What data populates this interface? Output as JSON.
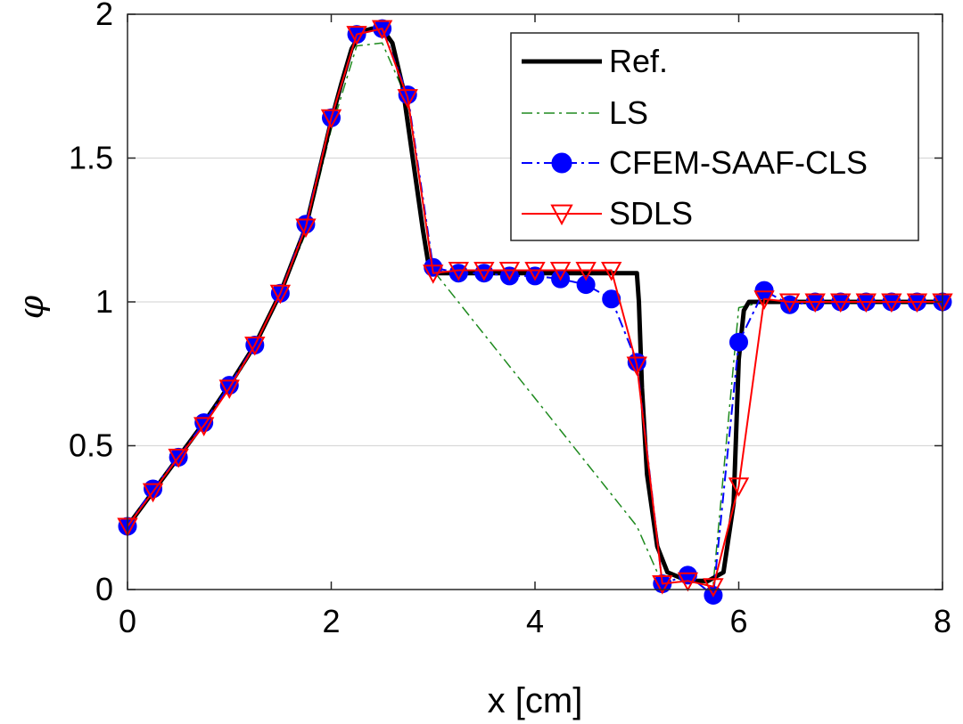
{
  "chart_data": {
    "type": "line",
    "title": "",
    "xlabel": "x [cm]",
    "ylabel": "φ",
    "xlim": [
      0,
      8
    ],
    "ylim": [
      0,
      2
    ],
    "xticks": [
      0,
      2,
      4,
      6,
      8
    ],
    "xtick_labels": [
      "0",
      "2",
      "4",
      "6",
      "8"
    ],
    "yticks": [
      0,
      0.5,
      1,
      1.5,
      2
    ],
    "ytick_labels": [
      "0",
      "0.5",
      "1",
      "1.5",
      "2"
    ],
    "grid": "horizontal",
    "legend_position": "top-right",
    "series": [
      {
        "name": "Ref.",
        "color": "#000000",
        "style": "solid",
        "marker": "none",
        "x": [
          0,
          0.25,
          0.5,
          0.75,
          1.0,
          1.25,
          1.5,
          1.75,
          2.0,
          2.1,
          2.2,
          2.3,
          2.4,
          2.5,
          2.6,
          2.7,
          2.8,
          2.9,
          2.95,
          3.0,
          4.0,
          5.0,
          5.02,
          5.05,
          5.1,
          5.2,
          5.3,
          5.5,
          5.7,
          5.85,
          5.95,
          6.0,
          6.05,
          6.1,
          7.0,
          8.0
        ],
        "y": [
          0.22,
          0.34,
          0.46,
          0.58,
          0.71,
          0.85,
          1.03,
          1.26,
          1.63,
          1.76,
          1.88,
          1.94,
          1.95,
          1.95,
          1.9,
          1.75,
          1.5,
          1.25,
          1.14,
          1.1,
          1.1,
          1.1,
          1.0,
          0.7,
          0.4,
          0.15,
          0.06,
          0.03,
          0.03,
          0.06,
          0.3,
          0.8,
          0.97,
          1.0,
          1.0,
          1.0
        ]
      },
      {
        "name": "LS",
        "color": "#1e8a1e",
        "style": "dashdot",
        "marker": "none",
        "x": [
          0,
          0.25,
          0.5,
          0.75,
          1.0,
          1.25,
          1.5,
          1.75,
          2.0,
          2.25,
          2.5,
          2.75,
          3.0,
          5.0,
          5.25,
          5.5,
          5.75,
          6.0,
          6.25,
          6.5,
          7.0,
          7.5,
          8.0
        ],
        "y": [
          0.22,
          0.34,
          0.46,
          0.57,
          0.7,
          0.84,
          1.02,
          1.24,
          1.6,
          1.89,
          1.9,
          1.7,
          1.11,
          0.22,
          0.02,
          0.03,
          0.02,
          0.98,
          1.0,
          1.0,
          1.0,
          1.0,
          1.0
        ]
      },
      {
        "name": "CFEM-SAAF-CLS",
        "color": "#0000ff",
        "style": "dashdot",
        "marker": "circle",
        "x": [
          0,
          0.25,
          0.5,
          0.75,
          1.0,
          1.25,
          1.5,
          1.75,
          2.0,
          2.25,
          2.5,
          2.75,
          3.0,
          3.25,
          3.5,
          3.75,
          4.0,
          4.25,
          4.5,
          4.75,
          5.0,
          5.25,
          5.5,
          5.75,
          6.0,
          6.25,
          6.5,
          6.75,
          7.0,
          7.25,
          7.5,
          7.75,
          8.0
        ],
        "y": [
          0.22,
          0.35,
          0.46,
          0.58,
          0.71,
          0.85,
          1.03,
          1.27,
          1.64,
          1.93,
          1.95,
          1.72,
          1.12,
          1.1,
          1.1,
          1.09,
          1.09,
          1.08,
          1.06,
          1.01,
          0.79,
          0.02,
          0.05,
          -0.02,
          0.86,
          1.04,
          0.99,
          1.0,
          1.0,
          1.0,
          1.0,
          1.0,
          1.0
        ]
      },
      {
        "name": "SDLS",
        "color": "#ff0000",
        "style": "solid",
        "marker": "triangle-down",
        "x": [
          0,
          0.25,
          0.5,
          0.75,
          1.0,
          1.25,
          1.5,
          1.75,
          2.0,
          2.25,
          2.5,
          2.75,
          3.0,
          3.25,
          3.5,
          3.75,
          4.0,
          4.25,
          4.5,
          4.75,
          5.0,
          5.25,
          5.5,
          5.75,
          6.0,
          6.25,
          6.5,
          6.75,
          7.0,
          7.25,
          7.5,
          7.75,
          8.0
        ],
        "y": [
          0.22,
          0.34,
          0.46,
          0.57,
          0.7,
          0.85,
          1.03,
          1.26,
          1.64,
          1.93,
          1.95,
          1.71,
          1.1,
          1.11,
          1.11,
          1.11,
          1.11,
          1.11,
          1.11,
          1.11,
          0.78,
          0.02,
          0.03,
          0.01,
          0.36,
          1.01,
          1.0,
          1.0,
          1.0,
          1.0,
          1.0,
          1.0,
          1.0
        ]
      }
    ]
  }
}
